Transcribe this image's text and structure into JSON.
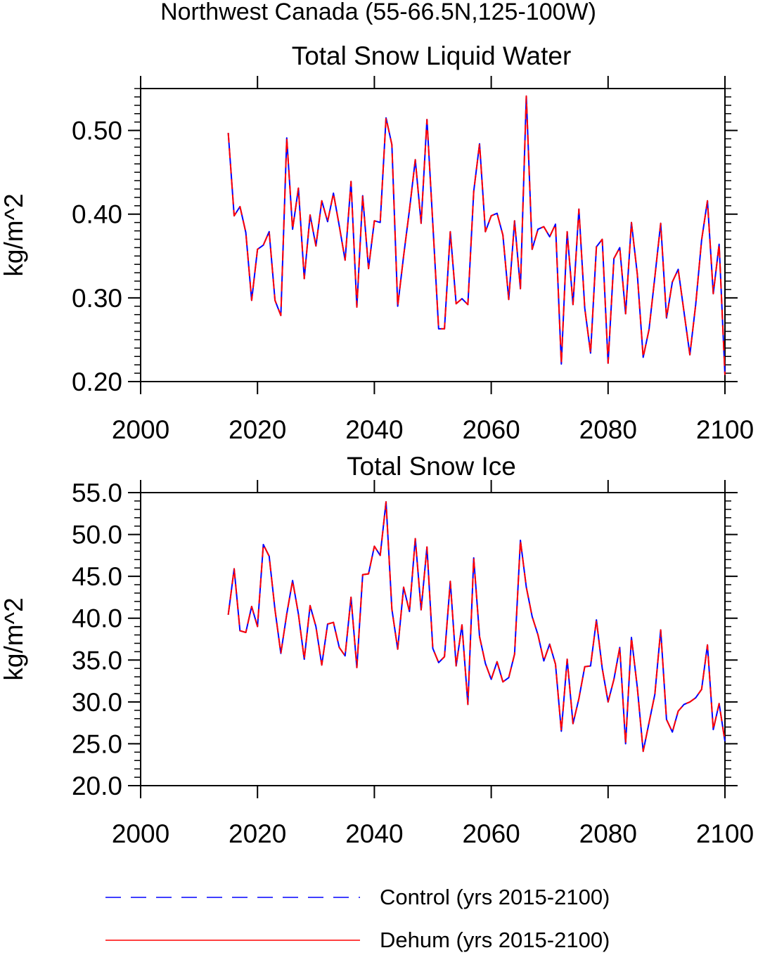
{
  "page": {
    "title": "Northwest Canada (55-66.5N,125-100W)"
  },
  "colors": {
    "control": "#0000ff",
    "dehum": "#ff0000",
    "axis": "#000000"
  },
  "legend": {
    "placement": "bottom",
    "items": [
      {
        "label": "Control (yrs 2015-2100)",
        "color": "#0000ff",
        "style": "dashed"
      },
      {
        "label": "Dehum (yrs 2015-2100)",
        "color": "#ff0000",
        "style": "solid"
      }
    ]
  },
  "chart_data": [
    {
      "type": "line",
      "title": "Total Snow Liquid Water",
      "xlabel": "",
      "ylabel": "kg/m^2",
      "xlim": [
        2000,
        2100
      ],
      "ylim": [
        0.2,
        0.55
      ],
      "xticks": [
        "2000",
        "2020",
        "2040",
        "2060",
        "2080",
        "2100"
      ],
      "xtick_values": [
        2000,
        2020,
        2040,
        2060,
        2080,
        2100
      ],
      "yticks": [
        "0.20",
        "0.30",
        "0.40",
        "0.50"
      ],
      "ytick_values": [
        0.2,
        0.3,
        0.4,
        0.5
      ],
      "grid": false,
      "x_start": 2015,
      "series": [
        {
          "name": "Control (yrs 2015-2100)",
          "values": [
            0.497,
            0.398,
            0.409,
            0.378,
            0.297,
            0.358,
            0.363,
            0.379,
            0.297,
            0.279,
            0.491,
            0.382,
            0.431,
            0.323,
            0.399,
            0.362,
            0.416,
            0.391,
            0.425,
            0.386,
            0.345,
            0.439,
            0.289,
            0.422,
            0.335,
            0.392,
            0.39,
            0.515,
            0.483,
            0.29,
            0.35,
            0.405,
            0.465,
            0.389,
            0.513,
            0.389,
            0.263,
            0.263,
            0.379,
            0.293,
            0.299,
            0.292,
            0.427,
            0.484,
            0.379,
            0.398,
            0.401,
            0.375,
            0.298,
            0.392,
            0.311,
            0.541,
            0.358,
            0.382,
            0.385,
            0.373,
            0.388,
            0.221,
            0.379,
            0.292,
            0.406,
            0.288,
            0.234,
            0.361,
            0.37,
            0.222,
            0.347,
            0.36,
            0.281,
            0.39,
            0.328,
            0.229,
            0.262,
            0.325,
            0.389,
            0.276,
            0.319,
            0.334,
            0.283,
            0.232,
            0.292,
            0.369,
            0.416,
            0.305,
            0.364,
            0.208
          ]
        },
        {
          "name": "Dehum (yrs 2015-2100)",
          "values": [
            0.497,
            0.398,
            0.409,
            0.378,
            0.297,
            0.358,
            0.363,
            0.379,
            0.297,
            0.279,
            0.491,
            0.382,
            0.431,
            0.323,
            0.399,
            0.362,
            0.416,
            0.391,
            0.425,
            0.386,
            0.345,
            0.439,
            0.289,
            0.422,
            0.335,
            0.392,
            0.39,
            0.515,
            0.483,
            0.29,
            0.35,
            0.405,
            0.465,
            0.389,
            0.513,
            0.389,
            0.263,
            0.263,
            0.379,
            0.293,
            0.299,
            0.292,
            0.427,
            0.484,
            0.379,
            0.398,
            0.401,
            0.375,
            0.298,
            0.392,
            0.311,
            0.541,
            0.358,
            0.382,
            0.385,
            0.373,
            0.388,
            0.221,
            0.379,
            0.292,
            0.406,
            0.288,
            0.234,
            0.361,
            0.37,
            0.222,
            0.347,
            0.36,
            0.281,
            0.39,
            0.328,
            0.229,
            0.262,
            0.325,
            0.389,
            0.276,
            0.319,
            0.334,
            0.283,
            0.232,
            0.292,
            0.369,
            0.416,
            0.305,
            0.364,
            0.208
          ]
        }
      ]
    },
    {
      "type": "line",
      "title": "Total Snow Ice",
      "xlabel": "",
      "ylabel": "kg/m^2",
      "xlim": [
        2000,
        2100
      ],
      "ylim": [
        20,
        55
      ],
      "xticks": [
        "2000",
        "2020",
        "2040",
        "2060",
        "2080",
        "2100"
      ],
      "xtick_values": [
        2000,
        2020,
        2040,
        2060,
        2080,
        2100
      ],
      "yticks": [
        "20.0",
        "25.0",
        "30.0",
        "35.0",
        "40.0",
        "45.0",
        "50.0",
        "55.0"
      ],
      "ytick_values": [
        20,
        25,
        30,
        35,
        40,
        45,
        50,
        55
      ],
      "grid": false,
      "x_start": 2015,
      "series": [
        {
          "name": "Control (yrs 2015-2100)",
          "values": [
            40.4,
            45.9,
            38.5,
            38.3,
            41.4,
            39.0,
            48.8,
            47.4,
            41.0,
            35.8,
            40.5,
            44.5,
            40.5,
            35.1,
            41.5,
            39.0,
            34.4,
            39.3,
            39.5,
            36.5,
            35.5,
            42.5,
            34.1,
            45.2,
            45.3,
            48.6,
            47.5,
            53.9,
            41.1,
            36.3,
            43.7,
            40.8,
            49.5,
            41.0,
            48.5,
            36.4,
            34.7,
            35.4,
            44.4,
            34.3,
            39.2,
            29.7,
            47.2,
            37.8,
            34.6,
            32.7,
            34.8,
            32.4,
            32.9,
            35.7,
            49.3,
            43.7,
            40.2,
            38.0,
            34.9,
            36.9,
            34.5,
            26.5,
            35.1,
            27.4,
            30.4,
            34.2,
            34.3,
            39.8,
            34.0,
            30.0,
            32.7,
            36.5,
            25.0,
            37.7,
            31.7,
            24.1,
            27.5,
            30.9,
            38.6,
            27.9,
            26.4,
            28.9,
            29.7,
            30.0,
            30.5,
            31.5,
            36.8,
            26.7,
            29.8,
            25.3
          ]
        },
        {
          "name": "Dehum (yrs 2015-2100)",
          "values": [
            40.4,
            45.9,
            38.5,
            38.3,
            41.4,
            39.0,
            48.8,
            47.4,
            41.0,
            35.8,
            40.5,
            44.5,
            40.5,
            35.1,
            41.5,
            39.0,
            34.4,
            39.3,
            39.5,
            36.5,
            35.5,
            42.5,
            34.1,
            45.2,
            45.3,
            48.6,
            47.5,
            53.9,
            41.1,
            36.3,
            43.7,
            40.8,
            49.5,
            41.0,
            48.5,
            36.4,
            34.7,
            35.4,
            44.4,
            34.3,
            39.2,
            29.7,
            47.2,
            37.8,
            34.6,
            32.7,
            34.8,
            32.4,
            32.9,
            35.7,
            49.3,
            43.7,
            40.2,
            38.0,
            34.9,
            36.9,
            34.5,
            26.5,
            35.1,
            27.4,
            30.4,
            34.2,
            34.3,
            39.8,
            34.0,
            30.0,
            32.7,
            36.5,
            25.0,
            37.7,
            31.7,
            24.1,
            27.5,
            30.9,
            38.6,
            27.9,
            26.4,
            28.9,
            29.7,
            30.0,
            30.5,
            31.5,
            36.8,
            26.7,
            29.8,
            25.3
          ]
        }
      ]
    }
  ]
}
